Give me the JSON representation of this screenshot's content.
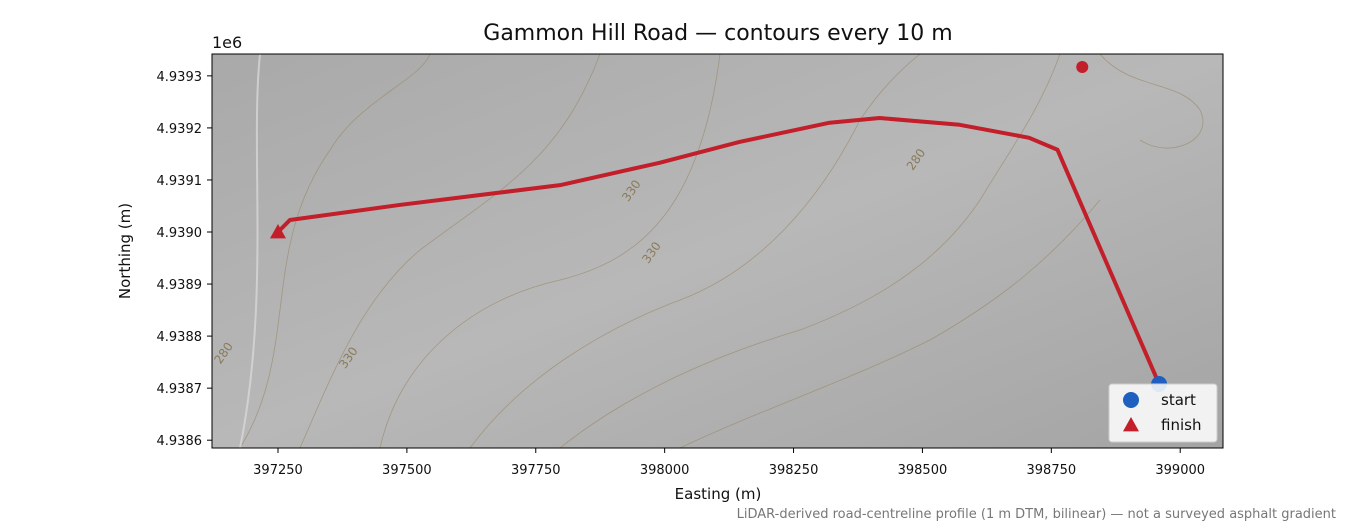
{
  "chart_data": {
    "type": "line",
    "title": "Gammon Hill Road — contours every 10 m",
    "xlabel": "Easting (m)",
    "ylabel": "Northing (m)",
    "y_offset_label": "1e6",
    "footnote": "LiDAR-derived road-centreline profile (1 m DTM, bilinear) — not a surveyed asphalt gradient",
    "xlim": [
      397122,
      399083
    ],
    "ylim": [
      4938585,
      4939342
    ],
    "xticks": [
      397250,
      397500,
      397750,
      398000,
      398250,
      398500,
      398750,
      399000
    ],
    "yticks": [
      {
        "value": 4938600,
        "label": "4.9386"
      },
      {
        "value": 4938700,
        "label": "4.9387"
      },
      {
        "value": 4938800,
        "label": "4.9388"
      },
      {
        "value": 4938900,
        "label": "4.9389"
      },
      {
        "value": 4939000,
        "label": "4.9390"
      },
      {
        "value": 4939100,
        "label": "4.9391"
      },
      {
        "value": 4939200,
        "label": "4.9392"
      },
      {
        "value": 4939300,
        "label": "4.9393"
      }
    ],
    "route": {
      "color": "#c21f2a",
      "x": [
        397250,
        397273,
        397486,
        397797,
        397990,
        398145,
        398320,
        398417,
        398572,
        398707,
        398762,
        398959
      ],
      "y": [
        4939000,
        4939023,
        4939052,
        4939090,
        4939133,
        4939173,
        4939210,
        4939219,
        4939206,
        4939181,
        4939158,
        4938708
      ]
    },
    "markers": [
      {
        "name": "start",
        "marker": "circle",
        "color": "#1f5fbf",
        "x": 398959,
        "y": 4938708
      },
      {
        "name": "finish",
        "marker": "triangle",
        "color": "#c21f2a",
        "x": 397250,
        "y": 4939000
      }
    ],
    "extra_points": [
      {
        "color": "#c21f2a",
        "x": 398810,
        "y": 4939317
      }
    ],
    "annotations": [
      {
        "text": "330",
        "x": 397942,
        "y": 4939075
      },
      {
        "text": "330",
        "x": 397981,
        "y": 4938956
      },
      {
        "text": "330",
        "x": 397393,
        "y": 4938754
      },
      {
        "text": "280",
        "x": 398494,
        "y": 4939135
      },
      {
        "text": "280",
        "x": 397151,
        "y": 4938763
      }
    ],
    "legend": "lower right"
  }
}
